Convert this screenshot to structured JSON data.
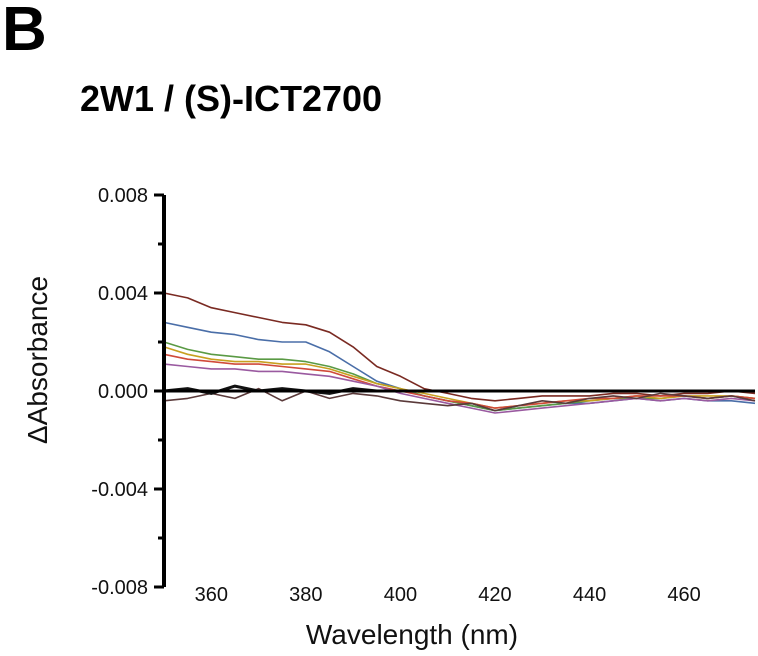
{
  "panel_label": "B",
  "chart_data": {
    "type": "line",
    "title": "2W1 / (S)-ICT2700",
    "xlabel": "Wavelength (nm)",
    "ylabel": "ΔAbsorbance",
    "xlim": [
      350,
      475
    ],
    "ylim": [
      -0.008,
      0.008
    ],
    "x_ticks": [
      360,
      380,
      400,
      420,
      440,
      460
    ],
    "x_tick_labels": [
      "360",
      "380",
      "400",
      "420",
      "440",
      "460"
    ],
    "y_ticks": [
      0.008,
      0.004,
      0.0,
      -0.004,
      -0.008
    ],
    "y_tick_labels": [
      "0.008",
      "0.004",
      "0.000",
      "-0.004",
      "-0.008"
    ],
    "grid": false,
    "x": [
      350,
      355,
      360,
      365,
      370,
      375,
      380,
      385,
      390,
      395,
      400,
      405,
      410,
      415,
      420,
      425,
      430,
      435,
      440,
      445,
      450,
      455,
      460,
      465,
      470,
      475
    ],
    "series": [
      {
        "color": "#7a2a22",
        "values": [
          0.004,
          0.0038,
          0.0034,
          0.0032,
          0.003,
          0.0028,
          0.0027,
          0.0024,
          0.0018,
          0.001,
          0.0006,
          0.0001,
          -0.0001,
          -0.0003,
          -0.0004,
          -0.0003,
          -0.0002,
          -0.0002,
          -0.0002,
          -0.0001,
          -0.0001,
          -0.0002,
          -0.0001,
          -0.0001,
          0.0,
          -0.0001
        ]
      },
      {
        "color": "#4a6ea8",
        "values": [
          0.0028,
          0.0026,
          0.0024,
          0.0023,
          0.0021,
          0.002,
          0.002,
          0.0016,
          0.001,
          0.0004,
          0.0001,
          -0.0002,
          -0.0004,
          -0.0006,
          -0.0008,
          -0.0007,
          -0.0006,
          -0.0005,
          -0.0005,
          -0.0004,
          -0.0003,
          -0.0004,
          -0.0003,
          -0.0004,
          -0.0004,
          -0.0005
        ]
      },
      {
        "color": "#5a9a44",
        "values": [
          0.002,
          0.0017,
          0.0015,
          0.0014,
          0.0013,
          0.0013,
          0.0012,
          0.001,
          0.0007,
          0.0003,
          0.0001,
          -0.0002,
          -0.0004,
          -0.0006,
          -0.0008,
          -0.0007,
          -0.0006,
          -0.0005,
          -0.0004,
          -0.0003,
          -0.0003,
          -0.0003,
          -0.0002,
          -0.0003,
          -0.0002,
          -0.0003
        ]
      },
      {
        "color": "#c8a020",
        "values": [
          0.0018,
          0.0015,
          0.0013,
          0.0012,
          0.0012,
          0.0011,
          0.0011,
          0.0009,
          0.0006,
          0.0003,
          0.0001,
          -0.0001,
          -0.0003,
          -0.0005,
          -0.0007,
          -0.0006,
          -0.0005,
          -0.0004,
          -0.0004,
          -0.0003,
          -0.0002,
          -0.0003,
          -0.0002,
          -0.0002,
          -0.0002,
          -0.0003
        ]
      },
      {
        "color": "#d04a3a",
        "values": [
          0.0015,
          0.0013,
          0.0012,
          0.0011,
          0.0011,
          0.001,
          0.0009,
          0.0008,
          0.0005,
          0.0002,
          0.0,
          -0.0002,
          -0.0004,
          -0.0005,
          -0.0007,
          -0.0006,
          -0.0005,
          -0.0004,
          -0.0003,
          -0.0003,
          -0.0002,
          -0.0002,
          -0.0002,
          -0.0003,
          -0.0002,
          -0.0003
        ]
      },
      {
        "color": "#9a5aa0",
        "values": [
          0.0011,
          0.001,
          0.0009,
          0.0009,
          0.0008,
          0.0008,
          0.0007,
          0.0006,
          0.0004,
          0.0002,
          -0.0001,
          -0.0003,
          -0.0005,
          -0.0007,
          -0.0009,
          -0.0008,
          -0.0007,
          -0.0006,
          -0.0005,
          -0.0004,
          -0.0003,
          -0.0004,
          -0.0003,
          -0.0004,
          -0.0003,
          -0.0004
        ]
      },
      {
        "color": "#5a3a3a",
        "values": [
          -0.0004,
          -0.0003,
          -0.0001,
          -0.0003,
          0.0001,
          -0.0004,
          0.0,
          -0.0003,
          -0.0001,
          -0.0002,
          -0.0004,
          -0.0005,
          -0.0006,
          -0.0005,
          -0.0008,
          -0.0006,
          -0.0004,
          -0.0005,
          -0.0003,
          -0.0002,
          -0.0003,
          -0.0001,
          -0.0002,
          -0.0003,
          -0.0002,
          -0.0004
        ]
      },
      {
        "color": "#111111",
        "values": [
          0.0,
          0.0001,
          -0.0001,
          0.0002,
          0.0,
          0.0001,
          0.0,
          -0.0001,
          0.0001,
          0.0,
          0.0,
          0.0,
          0.0,
          0.0,
          0.0,
          0.0,
          0.0,
          0.0,
          0.0,
          0.0,
          0.0,
          0.0,
          0.0,
          0.0,
          0.0,
          0.0
        ]
      }
    ]
  }
}
